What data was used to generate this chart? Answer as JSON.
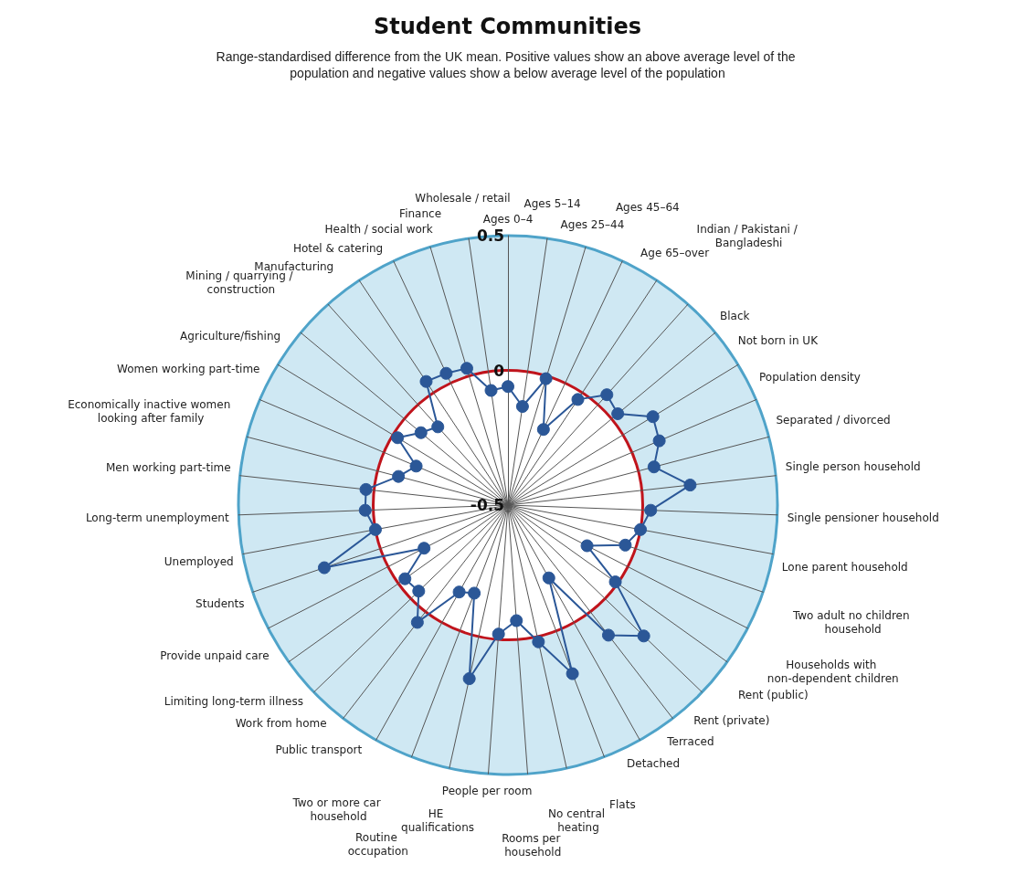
{
  "chart_data": {
    "type": "radar",
    "title": "Student Communities",
    "subtitle": "Range-standardised difference from the UK mean. Positive values show an above average level of the population and negative values show a below average level of the population",
    "categories": [
      "Ages 0–4",
      "Ages 5–14",
      "Ages 25–44",
      "Ages 45–64",
      "Age 65–over",
      "Indian / Pakistani / Bangladeshi",
      "Black",
      "Not born in UK",
      "Population density",
      "Separated / divorced",
      "Single person household",
      "Single pensioner household",
      "Lone parent household",
      "Two adult no children household",
      "Households with non-dependent children",
      "Rent (public)",
      "Rent (private)",
      "Terraced",
      "Detached",
      "Flats",
      "No central heating",
      "Rooms per household",
      "People per room",
      "HE qualifications",
      "Routine occupation",
      "Two or more car household",
      "Public transport",
      "Work from home",
      "Limiting long-term illness",
      "Provide unpaid care",
      "Students",
      "Unemployed",
      "Long-term unemployment",
      "Men working part-time",
      "Economically inactive women looking after family",
      "Women working part-time",
      "Agriculture/fishing",
      "Mining / quarrying / construction",
      "Manufacturing",
      "Hotel & catering",
      "Health / social work",
      "Finance",
      "Wholesale / retail"
    ],
    "series": [
      {
        "color": "#2b5797",
        "values": [
          -0.06,
          -0.13,
          -0.01,
          -0.19,
          -0.03,
          0.05,
          0.03,
          0.13,
          0.11,
          0.06,
          0.18,
          0.03,
          0.0,
          -0.04,
          -0.17,
          -0.01,
          0.2,
          0.11,
          -0.19,
          0.17,
          0.02,
          -0.07,
          -0.02,
          0.16,
          -0.15,
          -0.13,
          0.05,
          -0.04,
          -0.03,
          -0.15,
          0.22,
          0.0,
          0.03,
          0.03,
          -0.08,
          -0.13,
          -0.02,
          -0.08,
          -0.11,
          0.05,
          0.04,
          0.03,
          -0.07
        ]
      }
    ],
    "ylim": [
      -0.5,
      0.5
    ],
    "yticks": [
      -0.5,
      0,
      0.5
    ],
    "grid": true,
    "marker": "circle",
    "line_style": "solid"
  }
}
